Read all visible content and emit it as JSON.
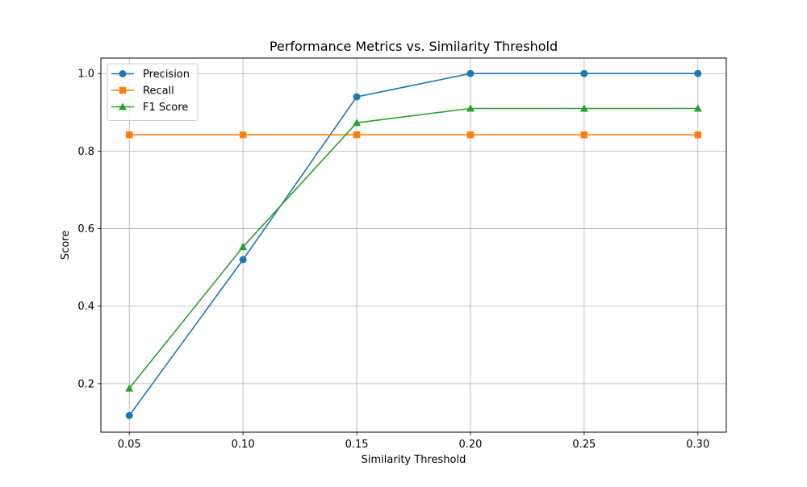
{
  "chart_data": {
    "type": "line",
    "title": "Performance Metrics vs. Similarity Threshold",
    "xlabel": "Similarity Threshold",
    "ylabel": "Score",
    "x": [
      0.05,
      0.1,
      0.15,
      0.2,
      0.25,
      0.3
    ],
    "x_tick_labels": [
      "0.05",
      "0.10",
      "0.15",
      "0.20",
      "0.25",
      "0.30"
    ],
    "xlim": [
      0.0375,
      0.3125
    ],
    "ylim": [
      0.075,
      1.04
    ],
    "y_ticks": [
      0.2,
      0.4,
      0.6,
      0.8,
      1.0
    ],
    "y_tick_labels": [
      "0.2",
      "0.4",
      "0.6",
      "0.8",
      "1.0"
    ],
    "grid": true,
    "legend_position": "top-left",
    "series": [
      {
        "name": "Precision",
        "values": [
          0.118,
          0.52,
          0.94,
          1.0,
          1.0,
          1.0
        ],
        "color": "#1f77b4",
        "marker": "circle"
      },
      {
        "name": "Recall",
        "values": [
          0.842,
          0.842,
          0.842,
          0.842,
          0.842,
          0.842
        ],
        "color": "#ff7f0e",
        "marker": "square"
      },
      {
        "name": "F1 Score",
        "values": [
          0.188,
          0.553,
          0.873,
          0.91,
          0.91,
          0.91
        ],
        "color": "#2ca02c",
        "marker": "triangle"
      }
    ]
  }
}
